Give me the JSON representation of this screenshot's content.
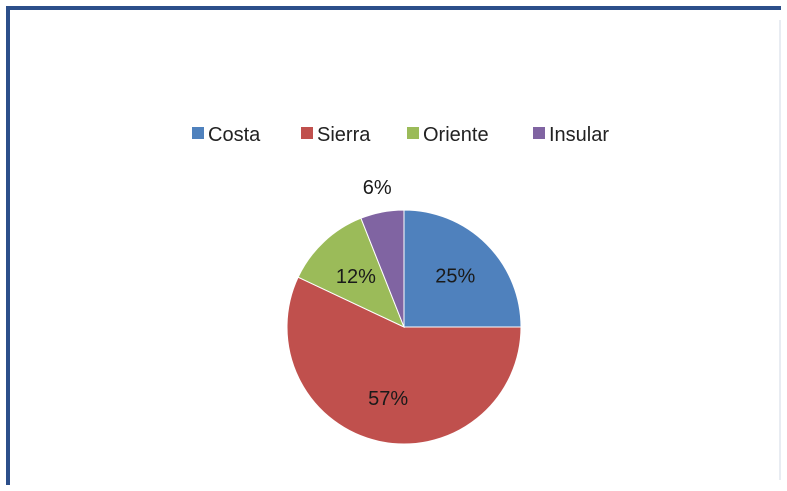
{
  "chart_data": {
    "type": "pie",
    "title": "",
    "categories": [
      "Costa",
      "Sierra",
      "Oriente",
      "Insular"
    ],
    "values": [
      25,
      57,
      12,
      6
    ],
    "data_labels": [
      "25%",
      "57%",
      "12%",
      "6%"
    ],
    "colors": [
      "#4f81bd",
      "#c0504d",
      "#9bbb59",
      "#8064a2"
    ],
    "legend": {
      "placement": "top",
      "entries": [
        "Costa",
        "Sierra",
        "Oriente",
        "Insular"
      ]
    },
    "start_angle": "12 o'clock",
    "direction": "clockwise"
  }
}
